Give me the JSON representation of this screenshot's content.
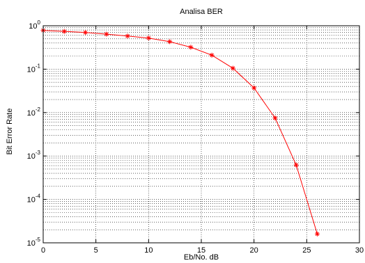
{
  "chart_data": {
    "type": "line",
    "title": "Analisa BER",
    "xlabel": "Eb/No. dB",
    "ylabel": "Bit Error Rate",
    "xlim": [
      0,
      30
    ],
    "ylim": [
      1e-05,
      1
    ],
    "yscale": "log",
    "grid": true,
    "legend": "none",
    "xticks": [
      "0",
      "5",
      "10",
      "15",
      "20",
      "25",
      "30"
    ],
    "yticks": [
      {
        "base": "10",
        "exp": "0"
      },
      {
        "base": "10",
        "exp": "-1"
      },
      {
        "base": "10",
        "exp": "-2"
      },
      {
        "base": "10",
        "exp": "-3"
      },
      {
        "base": "10",
        "exp": "-4"
      },
      {
        "base": "10",
        "exp": "-5"
      }
    ],
    "series": [
      {
        "color": "#ff0000",
        "marker": "asterisk",
        "x": [
          0,
          2,
          4,
          6,
          8,
          10,
          12,
          14,
          16,
          18,
          20,
          22,
          24,
          26
        ],
        "y": [
          0.78,
          0.74,
          0.7,
          0.64,
          0.58,
          0.52,
          0.43,
          0.32,
          0.21,
          0.105,
          0.037,
          0.0075,
          0.00062,
          1.6e-05
        ]
      }
    ]
  }
}
